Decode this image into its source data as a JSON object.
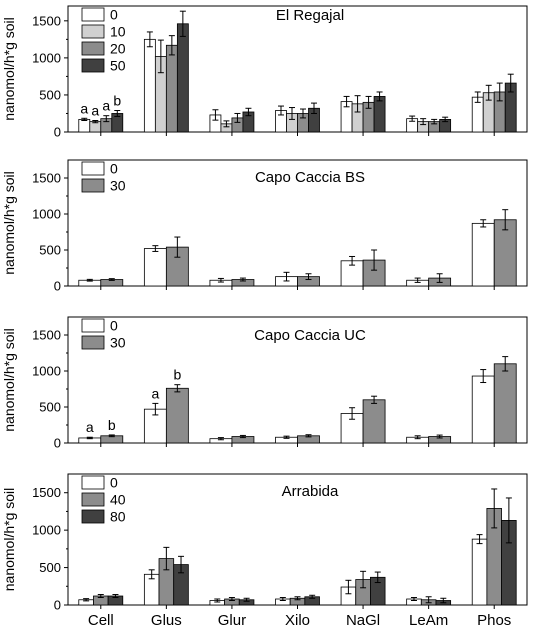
{
  "chart_data": {
    "type": "bar",
    "categories": [
      "Cell",
      "Glus",
      "Glur",
      "Xilo",
      "NaGl",
      "LeAm",
      "Phos"
    ],
    "ylabel": "nanomol/h*g soil",
    "grid": false,
    "error_bars": true,
    "panels": [
      {
        "title": "El Regajal",
        "ylim": [
          0,
          1700
        ],
        "yticks": [
          0,
          500,
          1000,
          1500
        ],
        "legend": [
          "0",
          "10",
          "20",
          "50"
        ],
        "colors": [
          "#ffffff",
          "#d0d0d0",
          "#8c8c8c",
          "#404040"
        ],
        "series": [
          {
            "name": "0",
            "values": [
              170,
              1250,
              230,
              290,
              410,
              180,
              470
            ],
            "errors": [
              15,
              100,
              70,
              60,
              70,
              35,
              70
            ]
          },
          {
            "name": "10",
            "values": [
              140,
              1020,
              110,
              250,
              380,
              140,
              530
            ],
            "errors": [
              15,
              220,
              40,
              80,
              110,
              40,
              100
            ]
          },
          {
            "name": "20",
            "values": [
              180,
              1170,
              190,
              250,
              400,
              140,
              540
            ],
            "errors": [
              40,
              130,
              60,
              60,
              80,
              30,
              120
            ]
          },
          {
            "name": "50",
            "values": [
              250,
              1460,
              270,
              320,
              480,
              170,
              660
            ],
            "errors": [
              40,
              170,
              50,
              70,
              60,
              30,
              120
            ]
          }
        ],
        "annotations": [
          {
            "category": "Cell",
            "series": "0",
            "text": "a"
          },
          {
            "category": "Cell",
            "series": "10",
            "text": "a"
          },
          {
            "category": "Cell",
            "series": "20",
            "text": "a"
          },
          {
            "category": "Cell",
            "series": "50",
            "text": "b"
          }
        ]
      },
      {
        "title": "Capo Caccia BS",
        "ylim": [
          0,
          1750
        ],
        "yticks": [
          0,
          500,
          1000,
          1500
        ],
        "legend": [
          "0",
          "30"
        ],
        "colors": [
          "#ffffff",
          "#8c8c8c"
        ],
        "series": [
          {
            "name": "0",
            "values": [
              80,
              520,
              80,
              130,
              350,
              80,
              870
            ],
            "errors": [
              12,
              40,
              25,
              60,
              60,
              30,
              50
            ]
          },
          {
            "name": "30",
            "values": [
              90,
              540,
              90,
              130,
              360,
              110,
              920
            ],
            "errors": [
              12,
              140,
              20,
              40,
              140,
              60,
              140
            ]
          }
        ],
        "annotations": []
      },
      {
        "title": "Capo Caccia UC",
        "ylim": [
          0,
          1750
        ],
        "yticks": [
          0,
          500,
          1000,
          1500
        ],
        "legend": [
          "0",
          "30"
        ],
        "colors": [
          "#ffffff",
          "#8c8c8c"
        ],
        "series": [
          {
            "name": "0",
            "values": [
              70,
              470,
              60,
              80,
              410,
              80,
              930
            ],
            "errors": [
              10,
              80,
              15,
              15,
              80,
              20,
              90
            ]
          },
          {
            "name": "30",
            "values": [
              100,
              760,
              90,
              100,
              600,
              90,
              1100
            ],
            "errors": [
              12,
              50,
              15,
              15,
              50,
              20,
              100
            ]
          }
        ],
        "annotations": [
          {
            "category": "Cell",
            "series": "0",
            "text": "a"
          },
          {
            "category": "Cell",
            "series": "30",
            "text": "b"
          },
          {
            "category": "Glus",
            "series": "0",
            "text": "a"
          },
          {
            "category": "Glus",
            "series": "30",
            "text": "b"
          }
        ]
      },
      {
        "title": "Arrabida",
        "ylim": [
          0,
          1750
        ],
        "yticks": [
          0,
          500,
          1000,
          1500
        ],
        "legend": [
          "0",
          "40",
          "80"
        ],
        "colors": [
          "#ffffff",
          "#8c8c8c",
          "#404040"
        ],
        "series": [
          {
            "name": "0",
            "values": [
              70,
              410,
              60,
              80,
              240,
              80,
              880
            ],
            "errors": [
              15,
              60,
              20,
              20,
              90,
              20,
              60
            ]
          },
          {
            "name": "40",
            "values": [
              120,
              620,
              80,
              90,
              340,
              70,
              1290
            ],
            "errors": [
              20,
              150,
              20,
              20,
              110,
              40,
              260
            ]
          },
          {
            "name": "80",
            "values": [
              120,
              540,
              70,
              110,
              370,
              60,
              1130
            ],
            "errors": [
              20,
              110,
              20,
              20,
              70,
              30,
              300
            ]
          }
        ],
        "annotations": []
      }
    ]
  }
}
